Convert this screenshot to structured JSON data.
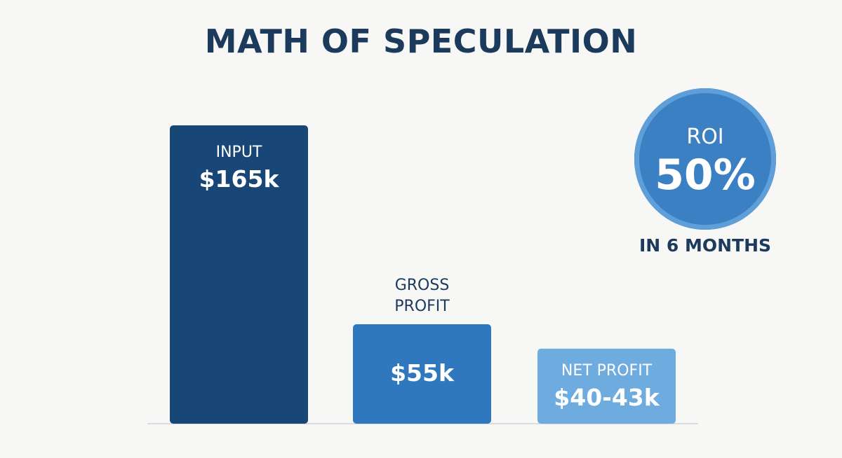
{
  "chart_data": {
    "type": "bar",
    "title": "MATH OF SPECULATION",
    "categories": [
      "INPUT",
      "GROSS\nPROFIT",
      "NET PROFIT"
    ],
    "value_labels": [
      "$165k",
      "$55k",
      "$40-43k"
    ],
    "values": [
      165,
      55,
      41.5
    ],
    "xlabel": "",
    "ylabel": "",
    "grid": false,
    "colors": [
      "#184777",
      "#2f78bd",
      "#6eacdf"
    ],
    "roi": {
      "label": "ROI",
      "value": "50%",
      "caption": "IN 6 MONTHS"
    }
  }
}
